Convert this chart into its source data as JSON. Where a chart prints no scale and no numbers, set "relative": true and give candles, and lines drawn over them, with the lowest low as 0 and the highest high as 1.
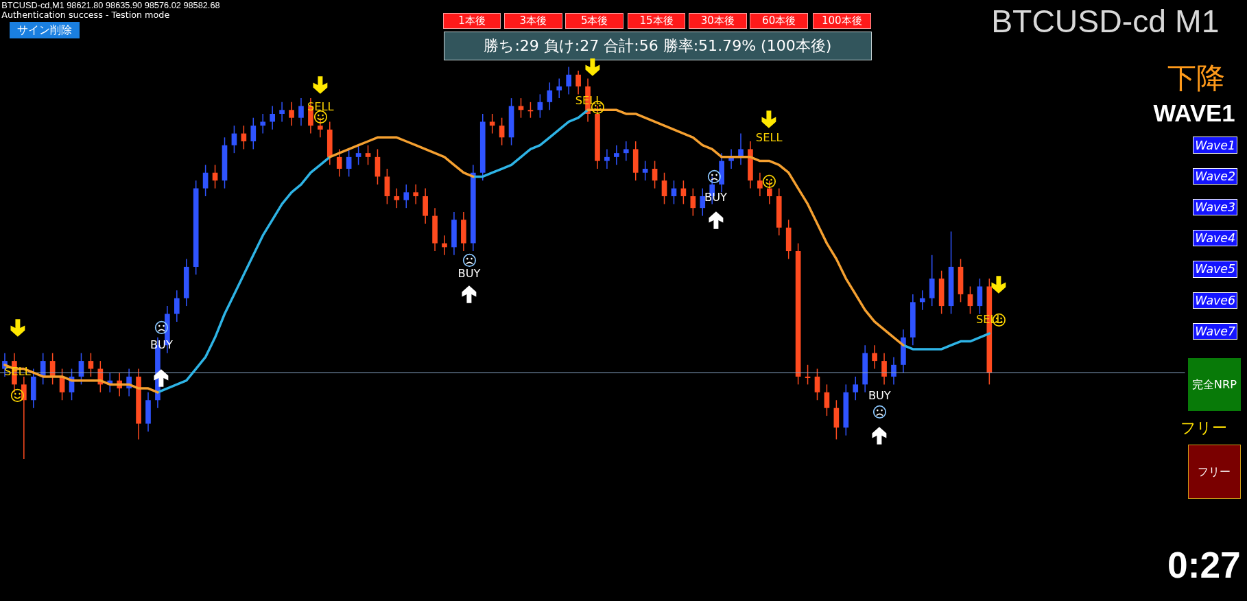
{
  "chart_data": {
    "type": "candlestick",
    "title": "BTCUSD-cd M1",
    "subtitle": "BTCUSD-cd,M1  98621.80 98635.90 98576.02 98582.68",
    "relative": true,
    "categories": [
      null,
      null,
      null,
      null,
      null,
      null,
      null,
      null,
      null,
      null,
      null,
      null,
      null,
      null,
      null,
      null,
      null,
      null,
      null,
      null,
      null,
      null,
      null,
      null,
      null,
      null,
      null,
      null,
      null,
      null,
      null,
      null,
      null,
      null,
      null,
      null,
      null,
      null,
      null,
      null,
      null,
      null,
      null,
      null,
      null,
      null,
      null,
      null,
      null,
      null,
      null,
      null,
      null,
      null,
      null,
      null,
      null,
      null,
      null,
      null,
      null,
      null,
      null,
      null,
      null,
      null,
      null,
      null,
      null,
      null,
      null,
      null,
      null,
      null,
      null,
      null,
      null,
      null,
      null,
      null,
      null,
      null,
      null,
      null,
      null,
      null,
      null,
      null,
      null,
      null,
      null,
      null,
      null,
      null,
      null,
      null,
      null,
      null,
      null,
      null,
      null,
      null,
      null,
      null
    ],
    "ohlc": [
      [
        0.23,
        0.27,
        0.21,
        0.25
      ],
      [
        0.25,
        0.27,
        0.17,
        0.19
      ],
      [
        0.19,
        0.21,
        0,
        0.15
      ],
      [
        0.15,
        0.23,
        0.13,
        0.21
      ],
      [
        0.21,
        0.27,
        0.19,
        0.25
      ],
      [
        0.25,
        0.27,
        0.19,
        0.21
      ],
      [
        0.21,
        0.23,
        0.15,
        0.17
      ],
      [
        0.17,
        0.23,
        0.15,
        0.21
      ],
      [
        0.21,
        0.27,
        0.19,
        0.25
      ],
      [
        0.25,
        0.27,
        0.21,
        0.23
      ],
      [
        0.23,
        0.25,
        0.17,
        0.19
      ],
      [
        0.19,
        0.22,
        0.17,
        0.2
      ],
      [
        0.2,
        0.22,
        0.16,
        0.18
      ],
      [
        0.18,
        0.23,
        0.16,
        0.21
      ],
      [
        0.21,
        0.23,
        0.05,
        0.09
      ],
      [
        0.09,
        0.17,
        0.07,
        0.15
      ],
      [
        0.15,
        0.31,
        0.13,
        0.29
      ],
      [
        0.29,
        0.39,
        0.27,
        0.37
      ],
      [
        0.37,
        0.43,
        0.35,
        0.41
      ],
      [
        0.41,
        0.51,
        0.39,
        0.49
      ],
      [
        0.49,
        0.71,
        0.47,
        0.69
      ],
      [
        0.69,
        0.75,
        0.67,
        0.73
      ],
      [
        0.73,
        0.75,
        0.69,
        0.71
      ],
      [
        0.71,
        0.82,
        0.69,
        0.8
      ],
      [
        0.8,
        0.85,
        0.78,
        0.83
      ],
      [
        0.83,
        0.85,
        0.79,
        0.81
      ],
      [
        0.81,
        0.87,
        0.79,
        0.85
      ],
      [
        0.85,
        0.88,
        0.83,
        0.86
      ],
      [
        0.86,
        0.9,
        0.84,
        0.88
      ],
      [
        0.88,
        0.91,
        0.86,
        0.89
      ],
      [
        0.89,
        0.91,
        0.85,
        0.87
      ],
      [
        0.87,
        0.92,
        0.85,
        0.9
      ],
      [
        0.9,
        0.92,
        0.83,
        0.85
      ],
      [
        0.85,
        0.87,
        0.82,
        0.84
      ],
      [
        0.84,
        0.86,
        0.75,
        0.77
      ],
      [
        0.77,
        0.79,
        0.72,
        0.74
      ],
      [
        0.74,
        0.79,
        0.72,
        0.77
      ],
      [
        0.77,
        0.8,
        0.75,
        0.78
      ],
      [
        0.78,
        0.8,
        0.75,
        0.77
      ],
      [
        0.77,
        0.79,
        0.7,
        0.72
      ],
      [
        0.72,
        0.74,
        0.65,
        0.67
      ],
      [
        0.67,
        0.69,
        0.64,
        0.66
      ],
      [
        0.66,
        0.7,
        0.64,
        0.68
      ],
      [
        0.68,
        0.7,
        0.65,
        0.67
      ],
      [
        0.67,
        0.69,
        0.6,
        0.62
      ],
      [
        0.62,
        0.64,
        0.53,
        0.55
      ],
      [
        0.55,
        0.57,
        0.52,
        0.54
      ],
      [
        0.54,
        0.63,
        0.52,
        0.61
      ],
      [
        0.61,
        0.63,
        0.53,
        0.55
      ],
      [
        0.55,
        0.75,
        0.53,
        0.73
      ],
      [
        0.73,
        0.88,
        0.71,
        0.86
      ],
      [
        0.86,
        0.88,
        0.83,
        0.85
      ],
      [
        0.85,
        0.87,
        0.8,
        0.82
      ],
      [
        0.82,
        0.92,
        0.8,
        0.9
      ],
      [
        0.9,
        0.92,
        0.87,
        0.89
      ],
      [
        0.89,
        0.91,
        0.87,
        0.89
      ],
      [
        0.89,
        0.93,
        0.87,
        0.91
      ],
      [
        0.91,
        0.96,
        0.89,
        0.94
      ],
      [
        0.94,
        0.97,
        0.92,
        0.95
      ],
      [
        0.95,
        1,
        0.93,
        0.98
      ],
      [
        0.98,
        0.99,
        0.93,
        0.95
      ],
      [
        0.95,
        0.97,
        0.86,
        0.88
      ],
      [
        0.88,
        0.9,
        0.74,
        0.76
      ],
      [
        0.76,
        0.79,
        0.74,
        0.77
      ],
      [
        0.77,
        0.8,
        0.75,
        0.78
      ],
      [
        0.78,
        0.81,
        0.76,
        0.79
      ],
      [
        0.79,
        0.81,
        0.71,
        0.73
      ],
      [
        0.73,
        0.76,
        0.71,
        0.74
      ],
      [
        0.74,
        0.76,
        0.69,
        0.71
      ],
      [
        0.71,
        0.73,
        0.65,
        0.67
      ],
      [
        0.67,
        0.71,
        0.65,
        0.69
      ],
      [
        0.69,
        0.71,
        0.65,
        0.67
      ],
      [
        0.67,
        0.69,
        0.62,
        0.64
      ],
      [
        0.64,
        0.69,
        0.62,
        0.67
      ],
      [
        0.67,
        0.72,
        0.65,
        0.7
      ],
      [
        0.7,
        0.78,
        0.68,
        0.76
      ],
      [
        0.76,
        0.79,
        0.74,
        0.77
      ],
      [
        0.77,
        0.83,
        0.75,
        0.79
      ],
      [
        0.79,
        0.81,
        0.69,
        0.71
      ],
      [
        0.71,
        0.73,
        0.67,
        0.69
      ],
      [
        0.69,
        0.71,
        0.65,
        0.67
      ],
      [
        0.67,
        0.69,
        0.57,
        0.59
      ],
      [
        0.59,
        0.61,
        0.51,
        0.53
      ],
      [
        0.53,
        0.55,
        0.19,
        0.21
      ],
      [
        0.21,
        0.24,
        0.19,
        0.21
      ],
      [
        0.21,
        0.23,
        0.15,
        0.17
      ],
      [
        0.17,
        0.19,
        0.11,
        0.13
      ],
      [
        0.13,
        0.15,
        0.05,
        0.08
      ],
      [
        0.08,
        0.19,
        0.06,
        0.17
      ],
      [
        0.17,
        0.21,
        0.15,
        0.19
      ],
      [
        0.19,
        0.29,
        0.17,
        0.27
      ],
      [
        0.27,
        0.29,
        0.23,
        0.25
      ],
      [
        0.25,
        0.27,
        0.19,
        0.21
      ],
      [
        0.21,
        0.26,
        0.19,
        0.24
      ],
      [
        0.24,
        0.33,
        0.22,
        0.31
      ],
      [
        0.31,
        0.42,
        0.29,
        0.4
      ],
      [
        0.4,
        0.43,
        0.38,
        0.41
      ],
      [
        0.41,
        0.52,
        0.39,
        0.46
      ],
      [
        0.46,
        0.48,
        0.37,
        0.39
      ],
      [
        0.39,
        0.58,
        0.37,
        0.49
      ],
      [
        0.49,
        0.51,
        0.4,
        0.42
      ],
      [
        0.42,
        0.44,
        0.37,
        0.39
      ],
      [
        0.39,
        0.46,
        0.37,
        0.44
      ],
      [
        0.44,
        0.46,
        0.19,
        0.22
      ]
    ],
    "colors": [
      "#2f54ff",
      "#ff4b1f",
      "#ff4b1f",
      "#2f54ff",
      "#2f54ff",
      "#ff4b1f",
      "#ff4b1f",
      "#2f54ff",
      "#2f54ff",
      "#ff4b1f",
      "#ff4b1f",
      "#2f54ff",
      "#ff4b1f",
      "#2f54ff",
      "#ff4b1f",
      "#2f54ff",
      "#2f54ff",
      "#2f54ff",
      "#2f54ff",
      "#2f54ff",
      "#2f54ff",
      "#2f54ff",
      "#ff4b1f",
      "#2f54ff",
      "#2f54ff",
      "#ff4b1f",
      "#2f54ff",
      "#2f54ff",
      "#2f54ff",
      "#2f54ff",
      "#ff4b1f",
      "#2f54ff",
      "#ff4b1f",
      "#ff4b1f",
      "#ff4b1f",
      "#ff4b1f",
      "#2f54ff",
      "#2f54ff",
      "#ff4b1f",
      "#ff4b1f",
      "#ff4b1f",
      "#ff4b1f",
      "#2f54ff",
      "#ff4b1f",
      "#ff4b1f",
      "#ff4b1f",
      "#ff4b1f",
      "#2f54ff",
      "#ff4b1f",
      "#2f54ff",
      "#2f54ff",
      "#ff4b1f",
      "#ff4b1f",
      "#2f54ff",
      "#ff4b1f",
      "#ff4b1f",
      "#2f54ff",
      "#2f54ff",
      "#2f54ff",
      "#2f54ff",
      "#ff4b1f",
      "#ff4b1f",
      "#ff4b1f",
      "#2f54ff",
      "#2f54ff",
      "#2f54ff",
      "#ff4b1f",
      "#2f54ff",
      "#ff4b1f",
      "#ff4b1f",
      "#2f54ff",
      "#ff4b1f",
      "#ff4b1f",
      "#2f54ff",
      "#2f54ff",
      "#2f54ff",
      "#2f54ff",
      "#2f54ff",
      "#ff4b1f",
      "#ff4b1f",
      "#ff4b1f",
      "#ff4b1f",
      "#ff4b1f",
      "#ff4b1f",
      "#ff4b1f",
      "#ff4b1f",
      "#ff4b1f",
      "#ff4b1f",
      "#2f54ff",
      "#2f54ff",
      "#2f54ff",
      "#ff4b1f",
      "#ff4b1f",
      "#2f54ff",
      "#2f54ff",
      "#2f54ff",
      "#2f54ff",
      "#2f54ff",
      "#ff4b1f",
      "#2f54ff",
      "#ff4b1f",
      "#ff4b1f",
      "#2f54ff",
      "#ff4b1f"
    ],
    "series": [
      {
        "type": "line",
        "color": "#f5a030",
        "values": [
          0.24,
          0.23,
          0.23,
          0.22,
          0.21,
          0.21,
          0.21,
          0.2,
          0.2,
          0.2,
          0.2,
          0.19,
          0.19,
          0.19,
          0.18,
          0.18,
          0.17,
          null,
          null,
          null,
          null,
          null,
          null,
          null,
          null,
          null,
          null,
          null,
          null,
          null,
          null,
          null,
          null,
          null,
          0.77,
          0.78,
          0.79,
          0.8,
          0.81,
          0.82,
          0.82,
          0.82,
          0.81,
          0.8,
          0.79,
          0.78,
          0.77,
          0.75,
          0.73,
          0.72,
          null,
          null,
          null,
          null,
          null,
          null,
          null,
          null,
          null,
          null,
          null,
          0.89,
          0.89,
          0.89,
          0.89,
          0.88,
          0.88,
          0.87,
          0.86,
          0.85,
          0.84,
          0.83,
          0.82,
          0.8,
          0.79,
          0.77,
          0.77,
          0.77,
          0.77,
          0.76,
          0.76,
          0.75,
          0.73,
          0.69,
          0.65,
          0.6,
          0.55,
          0.51,
          0.46,
          0.42,
          0.38,
          0.35,
          0.33,
          0.31,
          0.29,
          null,
          null,
          null,
          null,
          null,
          null,
          null,
          null,
          null
        ]
      },
      {
        "type": "line",
        "color": "#2eb4e6",
        "values": [
          null,
          null,
          null,
          null,
          null,
          null,
          null,
          null,
          null,
          null,
          null,
          null,
          null,
          null,
          null,
          null,
          0.17,
          0.18,
          0.19,
          0.2,
          0.23,
          0.26,
          0.31,
          0.37,
          0.42,
          0.47,
          0.52,
          0.57,
          0.61,
          0.65,
          0.68,
          0.7,
          0.73,
          0.75,
          0.77,
          null,
          null,
          null,
          null,
          null,
          null,
          null,
          null,
          null,
          null,
          null,
          null,
          null,
          null,
          0.72,
          0.72,
          0.73,
          0.74,
          0.75,
          0.77,
          0.79,
          0.8,
          0.82,
          0.84,
          0.86,
          0.87,
          0.89,
          null,
          null,
          null,
          null,
          null,
          null,
          null,
          null,
          null,
          null,
          null,
          null,
          null,
          null,
          null,
          null,
          null,
          null,
          null,
          null,
          null,
          null,
          null,
          null,
          null,
          null,
          null,
          null,
          null,
          null,
          null,
          null,
          0.29,
          0.28,
          0.28,
          0.28,
          0.28,
          0.29,
          0.3,
          0.3,
          0.31,
          0.32
        ]
      }
    ],
    "ref_lines": [
      {
        "axis": "y",
        "value": 0.22,
        "color": "#8aa6c8"
      }
    ],
    "annotations": [
      "Authentication success - Testion mode",
      "サイン削除",
      "1本後",
      "3本後",
      "5本後",
      "15本後",
      "30本後",
      "60本後",
      "100本後",
      "勝ち:29 負け:27 合計:56 勝率:51.79% (100本後)",
      "下降",
      "WAVE1",
      "Wave1",
      "Wave2",
      "Wave3",
      "Wave4",
      "Wave5",
      "Wave6",
      "Wave7",
      "完全NRP",
      "フリー",
      "フリー",
      "0:27",
      "SELL",
      "BUY",
      "SELL",
      "BUY",
      "SELL",
      "BUY",
      "SELL",
      "BUY",
      "SELL"
    ]
  }
}
